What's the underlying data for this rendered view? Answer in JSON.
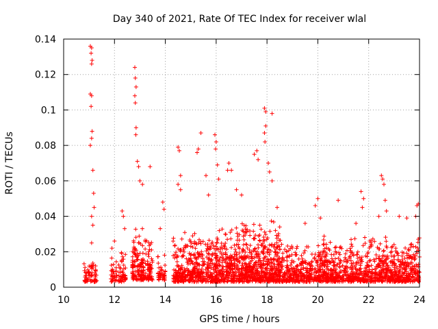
{
  "chart_data": {
    "type": "scatter",
    "title": "Day 340 of 2021, Rate Of TEC Index for receiver wlal",
    "xlabel": "GPS time / hours",
    "ylabel": "ROTI / TECUs",
    "xlim": [
      10,
      24
    ],
    "ylim": [
      0,
      0.14
    ],
    "grid": true,
    "marker": "+",
    "color": "#ff0000",
    "x_ticks": [
      10,
      12,
      14,
      16,
      18,
      20,
      22,
      24
    ],
    "x_tick_labels": [
      "10",
      "12",
      "14",
      "16",
      "18",
      "20",
      "22",
      "24"
    ],
    "y_ticks": [
      0,
      0.02,
      0.04,
      0.06,
      0.08,
      0.1,
      0.12,
      0.14
    ],
    "y_tick_labels": [
      "0",
      "0.02",
      "0.04",
      "0.06",
      "0.08",
      "0.1",
      "0.12",
      "0.14"
    ],
    "series": [
      {
        "name": "ROTI",
        "notable_points": [
          {
            "x": 11.05,
            "y": 0.136
          },
          {
            "x": 11.1,
            "y": 0.135
          },
          {
            "x": 11.08,
            "y": 0.132
          },
          {
            "x": 11.12,
            "y": 0.128
          },
          {
            "x": 11.1,
            "y": 0.126
          },
          {
            "x": 11.05,
            "y": 0.109
          },
          {
            "x": 11.1,
            "y": 0.108
          },
          {
            "x": 11.08,
            "y": 0.102
          },
          {
            "x": 11.12,
            "y": 0.088
          },
          {
            "x": 11.1,
            "y": 0.084
          },
          {
            "x": 11.05,
            "y": 0.08
          },
          {
            "x": 11.15,
            "y": 0.066
          },
          {
            "x": 11.18,
            "y": 0.053
          },
          {
            "x": 11.2,
            "y": 0.045
          },
          {
            "x": 11.1,
            "y": 0.04
          },
          {
            "x": 11.15,
            "y": 0.035
          },
          {
            "x": 11.1,
            "y": 0.025
          },
          {
            "x": 12.8,
            "y": 0.124
          },
          {
            "x": 12.82,
            "y": 0.118
          },
          {
            "x": 12.85,
            "y": 0.113
          },
          {
            "x": 12.8,
            "y": 0.108
          },
          {
            "x": 12.82,
            "y": 0.104
          },
          {
            "x": 12.85,
            "y": 0.09
          },
          {
            "x": 12.84,
            "y": 0.086
          },
          {
            "x": 12.9,
            "y": 0.071
          },
          {
            "x": 12.95,
            "y": 0.068
          },
          {
            "x": 13.0,
            "y": 0.06
          },
          {
            "x": 13.1,
            "y": 0.058
          },
          {
            "x": 13.4,
            "y": 0.068
          },
          {
            "x": 12.3,
            "y": 0.043
          },
          {
            "x": 12.35,
            "y": 0.04
          },
          {
            "x": 12.4,
            "y": 0.033
          },
          {
            "x": 12.0,
            "y": 0.026
          },
          {
            "x": 11.9,
            "y": 0.022
          },
          {
            "x": 13.8,
            "y": 0.033
          },
          {
            "x": 13.9,
            "y": 0.048
          },
          {
            "x": 13.95,
            "y": 0.044
          },
          {
            "x": 14.5,
            "y": 0.079
          },
          {
            "x": 14.55,
            "y": 0.077
          },
          {
            "x": 14.6,
            "y": 0.063
          },
          {
            "x": 14.5,
            "y": 0.058
          },
          {
            "x": 14.6,
            "y": 0.055
          },
          {
            "x": 15.25,
            "y": 0.076
          },
          {
            "x": 15.3,
            "y": 0.078
          },
          {
            "x": 15.4,
            "y": 0.087
          },
          {
            "x": 15.6,
            "y": 0.063
          },
          {
            "x": 15.7,
            "y": 0.052
          },
          {
            "x": 15.95,
            "y": 0.086
          },
          {
            "x": 16.0,
            "y": 0.082
          },
          {
            "x": 15.98,
            "y": 0.078
          },
          {
            "x": 16.05,
            "y": 0.069
          },
          {
            "x": 16.1,
            "y": 0.061
          },
          {
            "x": 16.5,
            "y": 0.07
          },
          {
            "x": 16.6,
            "y": 0.066
          },
          {
            "x": 16.45,
            "y": 0.066
          },
          {
            "x": 16.8,
            "y": 0.055
          },
          {
            "x": 17.0,
            "y": 0.052
          },
          {
            "x": 17.5,
            "y": 0.075
          },
          {
            "x": 17.6,
            "y": 0.077
          },
          {
            "x": 17.65,
            "y": 0.072
          },
          {
            "x": 17.9,
            "y": 0.101
          },
          {
            "x": 17.95,
            "y": 0.099
          },
          {
            "x": 18.2,
            "y": 0.098
          },
          {
            "x": 17.95,
            "y": 0.091
          },
          {
            "x": 17.9,
            "y": 0.087
          },
          {
            "x": 17.92,
            "y": 0.082
          },
          {
            "x": 18.05,
            "y": 0.07
          },
          {
            "x": 18.1,
            "y": 0.065
          },
          {
            "x": 18.2,
            "y": 0.06
          },
          {
            "x": 18.4,
            "y": 0.045
          },
          {
            "x": 18.5,
            "y": 0.034
          },
          {
            "x": 19.5,
            "y": 0.036
          },
          {
            "x": 20.0,
            "y": 0.05
          },
          {
            "x": 19.9,
            "y": 0.046
          },
          {
            "x": 20.1,
            "y": 0.039
          },
          {
            "x": 20.8,
            "y": 0.049
          },
          {
            "x": 21.5,
            "y": 0.036
          },
          {
            "x": 21.7,
            "y": 0.054
          },
          {
            "x": 21.8,
            "y": 0.05
          },
          {
            "x": 21.75,
            "y": 0.045
          },
          {
            "x": 22.5,
            "y": 0.063
          },
          {
            "x": 22.55,
            "y": 0.061
          },
          {
            "x": 22.6,
            "y": 0.058
          },
          {
            "x": 22.65,
            "y": 0.049
          },
          {
            "x": 22.7,
            "y": 0.043
          },
          {
            "x": 22.4,
            "y": 0.04
          },
          {
            "x": 23.2,
            "y": 0.04
          },
          {
            "x": 23.5,
            "y": 0.039
          },
          {
            "x": 23.95,
            "y": 0.047
          },
          {
            "x": 23.9,
            "y": 0.046
          },
          {
            "x": 23.85,
            "y": 0.04
          }
        ],
        "dense_bands": [
          {
            "x_start": 10.8,
            "x_end": 11.3,
            "y_min": 0.003,
            "y_max": 0.018
          },
          {
            "x_start": 11.85,
            "x_end": 12.1,
            "y_min": 0.003,
            "y_max": 0.018
          },
          {
            "x_start": 12.15,
            "x_end": 12.45,
            "y_min": 0.003,
            "y_max": 0.022
          },
          {
            "x_start": 12.7,
            "x_end": 13.1,
            "y_min": 0.004,
            "y_max": 0.035
          },
          {
            "x_start": 13.1,
            "y_min": 0.004,
            "x_end": 13.5,
            "y_max": 0.03
          },
          {
            "x_start": 13.7,
            "x_end": 14.0,
            "y_min": 0.004,
            "y_max": 0.02
          },
          {
            "x_start": 14.3,
            "x_end": 16.0,
            "y_min": 0.003,
            "y_max": 0.033
          },
          {
            "x_start": 16.0,
            "x_end": 17.0,
            "y_min": 0.003,
            "y_max": 0.035
          },
          {
            "x_start": 17.0,
            "x_end": 18.6,
            "y_min": 0.003,
            "y_max": 0.04
          },
          {
            "x_start": 18.6,
            "x_end": 20.0,
            "y_min": 0.003,
            "y_max": 0.026
          },
          {
            "x_start": 20.0,
            "x_end": 22.0,
            "y_min": 0.003,
            "y_max": 0.03
          },
          {
            "x_start": 22.0,
            "x_end": 24.0,
            "y_min": 0.003,
            "y_max": 0.03
          }
        ]
      }
    ]
  }
}
